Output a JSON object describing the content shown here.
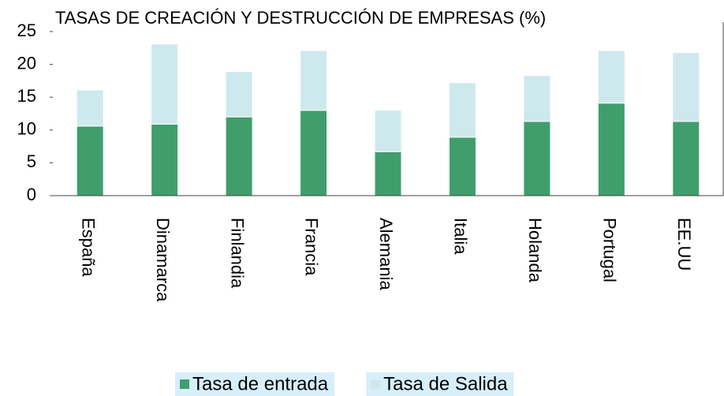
{
  "chart_data": {
    "type": "stacked_bar",
    "title": "TASAS DE CREACIÓN Y DESTRUCCIÓN DE EMPRESAS (%)",
    "categories": [
      "España",
      "Dinamarca",
      "Finlandia",
      "Francia",
      "Alemania",
      "Italia",
      "Holanda",
      "Portugal",
      "EE.UU"
    ],
    "series": [
      {
        "name": "Tasa de entrada",
        "color": "#3f9e6c",
        "values": [
          10.6,
          10.9,
          12.0,
          13.0,
          6.7,
          8.9,
          11.3,
          14.1,
          11.3
        ]
      },
      {
        "name": "Tasa de Salida",
        "color": "#cde9ee",
        "values": [
          5.5,
          12.2,
          6.9,
          9.1,
          6.3,
          8.3,
          7.0,
          8.0,
          10.5
        ]
      }
    ],
    "ylim": [
      0,
      25
    ],
    "yticks": [
      0,
      5,
      10,
      15,
      20,
      25
    ],
    "grid": false
  }
}
